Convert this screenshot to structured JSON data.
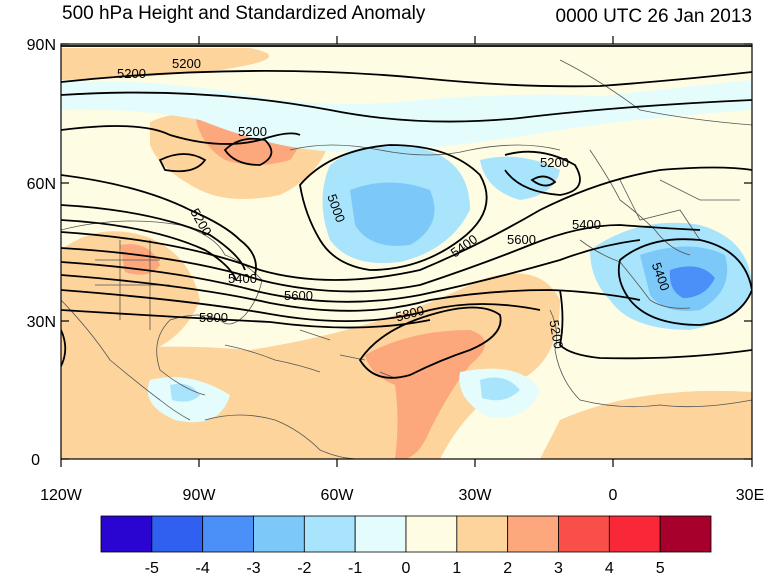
{
  "title_left": "500 hPa Height and Standardized Anomaly",
  "title_right": "0000 UTC 26 Jan 2013",
  "lat_ticks": [
    "90N",
    "60N",
    "30N",
    "0"
  ],
  "lon_ticks": [
    "120W",
    "90W",
    "60W",
    "30W",
    "0",
    "30E"
  ],
  "contour_labels": [
    "5200",
    "5200",
    "5200",
    "5200",
    "5000",
    "5200",
    "5400",
    "5400",
    "5600",
    "5600",
    "5400",
    "5800",
    "5800",
    "5200",
    "5400"
  ],
  "colorbar": {
    "labels": [
      "-5",
      "-4",
      "-3",
      "-2",
      "-1",
      "0",
      "1",
      "2",
      "3",
      "4",
      "5"
    ],
    "colors": [
      "#2a04d0",
      "#3060f0",
      "#4a90f8",
      "#7cc8f8",
      "#a8e4fc",
      "#e4fcfc",
      "#fffce4",
      "#fcd49c",
      "#fca87c",
      "#f85048",
      "#f82838",
      "#a8002c"
    ]
  },
  "colors": {
    "land_line": "#555555",
    "contour": "#000000",
    "background": "#ffffff"
  }
}
